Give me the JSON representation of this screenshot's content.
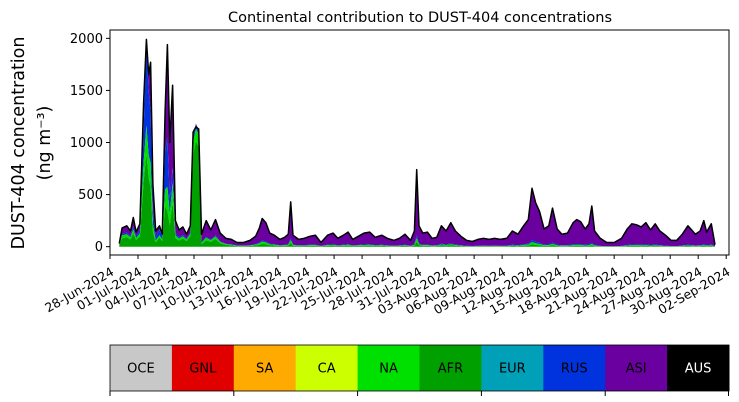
{
  "chart_data": {
    "type": "area",
    "title": "Continental contribution to DUST-404 concentrations",
    "ylabel_line1": "DUST-404 concentration",
    "ylabel_line2": "(ng m⁻³)",
    "ylim": [
      -80,
      2080
    ],
    "yticks": [
      0,
      500,
      1000,
      1500,
      2000
    ],
    "x_tick_labels": [
      "28-Jun-2024",
      "01-Jul-2024",
      "04-Jul-2024",
      "07-Jul-2024",
      "10-Jul-2024",
      "13-Jul-2024",
      "16-Jul-2024",
      "19-Jul-2024",
      "22-Jul-2024",
      "25-Jul-2024",
      "28-Jul-2024",
      "31-Jul-2024",
      "03-Aug-2024",
      "06-Aug-2024",
      "09-Aug-2024",
      "12-Aug-2024",
      "15-Aug-2024",
      "18-Aug-2024",
      "21-Aug-2024",
      "24-Aug-2024",
      "27-Aug-2024",
      "30-Aug-2024",
      "02-Sep-2024"
    ],
    "x_day_range": [
      0,
      66.3
    ],
    "x_tick_step_days": 3,
    "stack_order_bottom_to_top": [
      "AFR",
      "NA",
      "RUS",
      "ASI"
    ],
    "total_outline_color": "#000000",
    "total": [
      [
        1,
        30
      ],
      [
        1.3,
        180
      ],
      [
        1.8,
        200
      ],
      [
        2.2,
        150
      ],
      [
        2.5,
        280
      ],
      [
        2.8,
        140
      ],
      [
        3.2,
        220
      ],
      [
        3.6,
        1380
      ],
      [
        3.9,
        1990
      ],
      [
        4.15,
        1650
      ],
      [
        4.35,
        1770
      ],
      [
        4.6,
        600
      ],
      [
        4.9,
        150
      ],
      [
        5.3,
        200
      ],
      [
        5.6,
        120
      ],
      [
        5.9,
        1300
      ],
      [
        6.15,
        1940
      ],
      [
        6.4,
        1000
      ],
      [
        6.7,
        1550
      ],
      [
        7.0,
        250
      ],
      [
        7.4,
        160
      ],
      [
        7.8,
        190
      ],
      [
        8.2,
        120
      ],
      [
        8.6,
        200
      ],
      [
        8.9,
        1100
      ],
      [
        9.2,
        1150
      ],
      [
        9.5,
        1130
      ],
      [
        9.8,
        120
      ],
      [
        10.3,
        250
      ],
      [
        10.8,
        160
      ],
      [
        11.3,
        260
      ],
      [
        11.8,
        130
      ],
      [
        12.4,
        80
      ],
      [
        13,
        70
      ],
      [
        13.6,
        40
      ],
      [
        14.3,
        40
      ],
      [
        15,
        60
      ],
      [
        15.6,
        100
      ],
      [
        16,
        180
      ],
      [
        16.3,
        270
      ],
      [
        16.7,
        230
      ],
      [
        17.1,
        130
      ],
      [
        17.6,
        110
      ],
      [
        18.2,
        70
      ],
      [
        18.7,
        90
      ],
      [
        19.1,
        120
      ],
      [
        19.35,
        430
      ],
      [
        19.6,
        110
      ],
      [
        20.2,
        70
      ],
      [
        20.8,
        80
      ],
      [
        21.4,
        100
      ],
      [
        22,
        110
      ],
      [
        22.6,
        40
      ],
      [
        23.3,
        110
      ],
      [
        23.9,
        130
      ],
      [
        24.4,
        80
      ],
      [
        25,
        110
      ],
      [
        25.5,
        140
      ],
      [
        26,
        70
      ],
      [
        26.6,
        100
      ],
      [
        27.2,
        130
      ],
      [
        27.8,
        140
      ],
      [
        28.4,
        90
      ],
      [
        29.1,
        110
      ],
      [
        29.7,
        80
      ],
      [
        30.4,
        60
      ],
      [
        31,
        80
      ],
      [
        31.6,
        120
      ],
      [
        32.2,
        60
      ],
      [
        32.6,
        150
      ],
      [
        32.85,
        740
      ],
      [
        33.1,
        200
      ],
      [
        33.5,
        130
      ],
      [
        34,
        140
      ],
      [
        34.5,
        80
      ],
      [
        35,
        90
      ],
      [
        35.5,
        200
      ],
      [
        36,
        150
      ],
      [
        36.5,
        230
      ],
      [
        37,
        150
      ],
      [
        37.6,
        100
      ],
      [
        38.2,
        60
      ],
      [
        38.8,
        50
      ],
      [
        39.4,
        70
      ],
      [
        40,
        80
      ],
      [
        40.6,
        70
      ],
      [
        41.2,
        80
      ],
      [
        41.8,
        70
      ],
      [
        42.5,
        80
      ],
      [
        43.1,
        150
      ],
      [
        43.7,
        120
      ],
      [
        44.3,
        200
      ],
      [
        44.8,
        260
      ],
      [
        45.2,
        560
      ],
      [
        45.6,
        420
      ],
      [
        46,
        340
      ],
      [
        46.5,
        170
      ],
      [
        47,
        200
      ],
      [
        47.4,
        370
      ],
      [
        47.9,
        170
      ],
      [
        48.4,
        120
      ],
      [
        49,
        130
      ],
      [
        49.6,
        230
      ],
      [
        50,
        260
      ],
      [
        50.4,
        240
      ],
      [
        50.9,
        170
      ],
      [
        51.3,
        220
      ],
      [
        51.6,
        390
      ],
      [
        51.9,
        150
      ],
      [
        52.5,
        80
      ],
      [
        53.2,
        40
      ],
      [
        54,
        40
      ],
      [
        54.8,
        80
      ],
      [
        55.4,
        170
      ],
      [
        55.9,
        220
      ],
      [
        56.4,
        210
      ],
      [
        56.9,
        190
      ],
      [
        57.4,
        230
      ],
      [
        57.9,
        160
      ],
      [
        58.4,
        220
      ],
      [
        58.9,
        150
      ],
      [
        59.5,
        110
      ],
      [
        60.1,
        60
      ],
      [
        60.7,
        60
      ],
      [
        61.3,
        120
      ],
      [
        61.9,
        200
      ],
      [
        62.3,
        160
      ],
      [
        62.7,
        120
      ],
      [
        63.2,
        150
      ],
      [
        63.6,
        250
      ],
      [
        63.9,
        140
      ],
      [
        64.4,
        220
      ],
      [
        64.8,
        20
      ]
    ],
    "afr_fraction": [
      [
        1,
        0.45
      ],
      [
        4,
        0.45
      ],
      [
        4.7,
        0.2
      ],
      [
        5.5,
        0.5
      ],
      [
        6.2,
        0.15
      ],
      [
        6.8,
        0.3
      ],
      [
        8.6,
        0.5
      ],
      [
        9,
        0.9
      ],
      [
        9.5,
        0.85
      ],
      [
        9.8,
        0.2
      ],
      [
        11,
        0.3
      ],
      [
        14,
        0.12
      ],
      [
        20,
        0.08
      ],
      [
        30,
        0.07
      ],
      [
        40,
        0.05
      ],
      [
        50,
        0.03
      ],
      [
        64.8,
        0.03
      ]
    ],
    "na_fraction": [
      [
        1,
        0.15
      ],
      [
        10,
        0.1
      ],
      [
        20,
        0.06
      ],
      [
        40,
        0.04
      ],
      [
        64.8,
        0.03
      ]
    ],
    "rus_fraction": [
      [
        1,
        0.05
      ],
      [
        3.5,
        0.15
      ],
      [
        4,
        0.45
      ],
      [
        4.5,
        0.2
      ],
      [
        6,
        0.3
      ],
      [
        6.5,
        0.1
      ],
      [
        9,
        0.04
      ],
      [
        15,
        0.04
      ],
      [
        64.8,
        0.03
      ]
    ],
    "colors": {
      "AFR": "#00a000",
      "NA": "#00e000",
      "RUS": "#0033dd",
      "ASI": "#6a00a0"
    },
    "colorbar": {
      "labels": [
        "OCE",
        "GNL",
        "SA",
        "CA",
        "NA",
        "AFR",
        "EUR",
        "RUS",
        "ASI",
        "AUS"
      ],
      "colors": [
        "#c8c8c8",
        "#e00000",
        "#ffaa00",
        "#ccff00",
        "#00e000",
        "#00a000",
        "#00a0b8",
        "#0033dd",
        "#6a00a0",
        "#000000"
      ],
      "text_colors": [
        "#000000",
        "#000000",
        "#000000",
        "#000000",
        "#000000",
        "#000000",
        "#000000",
        "#000000",
        "#000000",
        "#ffffff"
      ]
    }
  }
}
